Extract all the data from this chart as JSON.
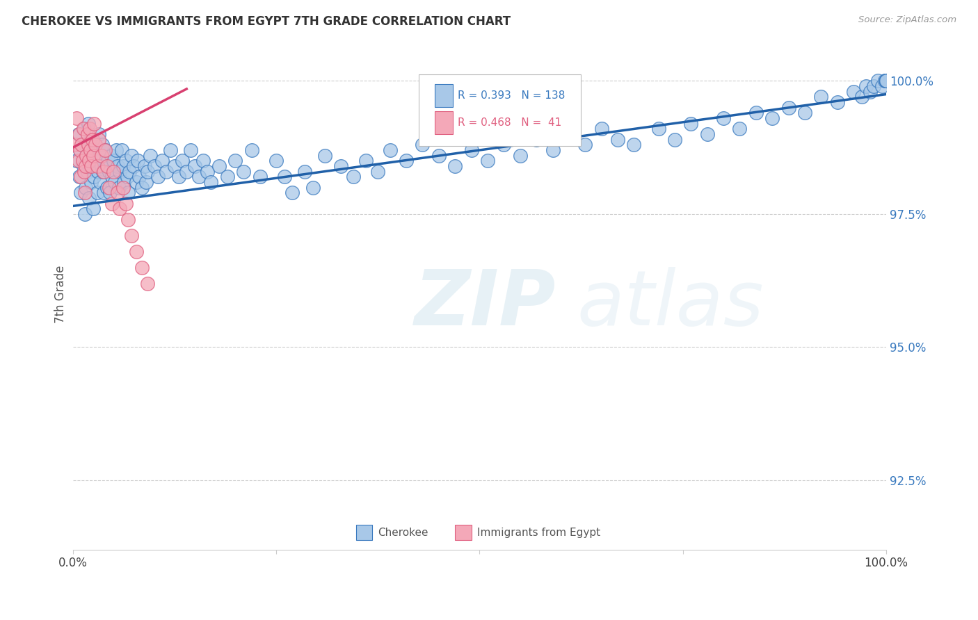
{
  "title": "CHEROKEE VS IMMIGRANTS FROM EGYPT 7TH GRADE CORRELATION CHART",
  "source": "Source: ZipAtlas.com",
  "ylabel": "7th Grade",
  "ytick_labels": [
    "92.5%",
    "95.0%",
    "97.5%",
    "100.0%"
  ],
  "ytick_values": [
    0.925,
    0.95,
    0.975,
    1.0
  ],
  "xlim": [
    0.0,
    1.0
  ],
  "ylim": [
    0.912,
    1.008
  ],
  "legend_blue_r": "0.393",
  "legend_blue_n": "138",
  "legend_pink_r": "0.468",
  "legend_pink_n": " 41",
  "blue_fill": "#A8C8E8",
  "pink_fill": "#F4A8B8",
  "blue_edge": "#3A7ABF",
  "pink_edge": "#E06080",
  "line_blue": "#2060A8",
  "line_pink": "#D84070",
  "watermark_zip": "ZIP",
  "watermark_atlas": "atlas",
  "blue_points_x": [
    0.005,
    0.007,
    0.008,
    0.009,
    0.01,
    0.012,
    0.013,
    0.014,
    0.015,
    0.016,
    0.017,
    0.018,
    0.019,
    0.02,
    0.021,
    0.022,
    0.023,
    0.024,
    0.025,
    0.026,
    0.027,
    0.028,
    0.03,
    0.031,
    0.032,
    0.033,
    0.034,
    0.035,
    0.036,
    0.037,
    0.038,
    0.04,
    0.041,
    0.042,
    0.043,
    0.045,
    0.046,
    0.047,
    0.048,
    0.05,
    0.052,
    0.053,
    0.055,
    0.057,
    0.058,
    0.06,
    0.062,
    0.063,
    0.065,
    0.067,
    0.068,
    0.07,
    0.072,
    0.075,
    0.078,
    0.08,
    0.082,
    0.085,
    0.088,
    0.09,
    0.092,
    0.095,
    0.1,
    0.105,
    0.11,
    0.115,
    0.12,
    0.125,
    0.13,
    0.135,
    0.14,
    0.145,
    0.15,
    0.155,
    0.16,
    0.165,
    0.17,
    0.18,
    0.19,
    0.2,
    0.21,
    0.22,
    0.23,
    0.25,
    0.26,
    0.27,
    0.285,
    0.295,
    0.31,
    0.33,
    0.345,
    0.36,
    0.375,
    0.39,
    0.41,
    0.43,
    0.45,
    0.47,
    0.49,
    0.51,
    0.53,
    0.55,
    0.57,
    0.59,
    0.61,
    0.63,
    0.65,
    0.67,
    0.69,
    0.72,
    0.74,
    0.76,
    0.78,
    0.8,
    0.82,
    0.84,
    0.86,
    0.88,
    0.9,
    0.92,
    0.94,
    0.96,
    0.97,
    0.975,
    0.98,
    0.985,
    0.99,
    0.995,
    0.998,
    1.0,
    1.0,
    1.0,
    1.0,
    1.0,
    1.0,
    1.0,
    1.0,
    1.0
  ],
  "blue_points_y": [
    0.985,
    0.99,
    0.982,
    0.987,
    0.979,
    0.988,
    0.984,
    0.991,
    0.975,
    0.98,
    0.986,
    0.983,
    0.992,
    0.978,
    0.984,
    0.989,
    0.981,
    0.987,
    0.976,
    0.982,
    0.988,
    0.985,
    0.979,
    0.983,
    0.99,
    0.986,
    0.981,
    0.984,
    0.988,
    0.983,
    0.979,
    0.987,
    0.984,
    0.98,
    0.985,
    0.983,
    0.979,
    0.986,
    0.982,
    0.985,
    0.981,
    0.987,
    0.984,
    0.98,
    0.983,
    0.987,
    0.984,
    0.981,
    0.985,
    0.982,
    0.979,
    0.983,
    0.986,
    0.984,
    0.981,
    0.985,
    0.982,
    0.98,
    0.984,
    0.981,
    0.983,
    0.986,
    0.984,
    0.982,
    0.985,
    0.983,
    0.987,
    0.984,
    0.982,
    0.985,
    0.983,
    0.987,
    0.984,
    0.982,
    0.985,
    0.983,
    0.981,
    0.984,
    0.982,
    0.985,
    0.983,
    0.987,
    0.982,
    0.985,
    0.982,
    0.979,
    0.983,
    0.98,
    0.986,
    0.984,
    0.982,
    0.985,
    0.983,
    0.987,
    0.985,
    0.988,
    0.986,
    0.984,
    0.987,
    0.985,
    0.988,
    0.986,
    0.989,
    0.987,
    0.99,
    0.988,
    0.991,
    0.989,
    0.988,
    0.991,
    0.989,
    0.992,
    0.99,
    0.993,
    0.991,
    0.994,
    0.993,
    0.995,
    0.994,
    0.997,
    0.996,
    0.998,
    0.997,
    0.999,
    0.998,
    0.999,
    1.0,
    0.999,
    1.0,
    1.0,
    1.0,
    1.0,
    1.0,
    1.0,
    1.0,
    1.0,
    1.0,
    1.0
  ],
  "pink_points_x": [
    0.003,
    0.005,
    0.007,
    0.008,
    0.009,
    0.01,
    0.011,
    0.012,
    0.013,
    0.014,
    0.015,
    0.016,
    0.017,
    0.018,
    0.019,
    0.02,
    0.021,
    0.022,
    0.023,
    0.024,
    0.025,
    0.026,
    0.028,
    0.03,
    0.032,
    0.035,
    0.038,
    0.04,
    0.042,
    0.045,
    0.048,
    0.05,
    0.055,
    0.058,
    0.062,
    0.065,
    0.068,
    0.072,
    0.078,
    0.085,
    0.092
  ],
  "pink_points_y": [
    0.988,
    0.993,
    0.985,
    0.99,
    0.987,
    0.982,
    0.988,
    0.985,
    0.991,
    0.983,
    0.979,
    0.984,
    0.986,
    0.99,
    0.988,
    0.985,
    0.991,
    0.987,
    0.984,
    0.989,
    0.986,
    0.992,
    0.988,
    0.984,
    0.989,
    0.986,
    0.983,
    0.987,
    0.984,
    0.98,
    0.977,
    0.983,
    0.979,
    0.976,
    0.98,
    0.977,
    0.974,
    0.971,
    0.968,
    0.965,
    0.962
  ],
  "blue_line_x": [
    0.0,
    1.0
  ],
  "blue_line_y": [
    0.9765,
    0.9975
  ],
  "pink_line_x": [
    0.0,
    0.14
  ],
  "pink_line_y": [
    0.9875,
    0.9985
  ]
}
